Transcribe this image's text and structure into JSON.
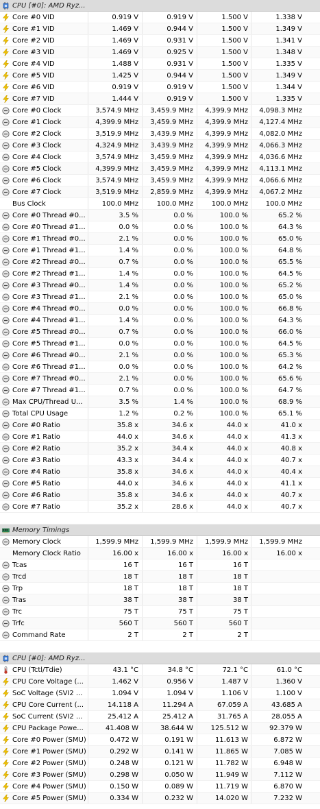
{
  "sections": [
    {
      "header": "CPU [#0]: AMD Ryz...",
      "header_icon": "cpu-chip-icon",
      "rows": [
        {
          "icon": "bolt",
          "label": "Core #0 VID",
          "values": [
            "0.919 V",
            "0.919 V",
            "1.500 V",
            "1.338 V"
          ]
        },
        {
          "icon": "bolt",
          "label": "Core #1 VID",
          "values": [
            "1.469 V",
            "0.944 V",
            "1.500 V",
            "1.349 V"
          ]
        },
        {
          "icon": "bolt",
          "label": "Core #2 VID",
          "values": [
            "1.469 V",
            "0.931 V",
            "1.500 V",
            "1.341 V"
          ]
        },
        {
          "icon": "bolt",
          "label": "Core #3 VID",
          "values": [
            "1.469 V",
            "0.925 V",
            "1.500 V",
            "1.348 V"
          ]
        },
        {
          "icon": "bolt",
          "label": "Core #4 VID",
          "values": [
            "1.488 V",
            "0.931 V",
            "1.500 V",
            "1.335 V"
          ]
        },
        {
          "icon": "bolt",
          "label": "Core #5 VID",
          "values": [
            "1.425 V",
            "0.944 V",
            "1.500 V",
            "1.349 V"
          ]
        },
        {
          "icon": "bolt",
          "label": "Core #6 VID",
          "values": [
            "0.919 V",
            "0.919 V",
            "1.500 V",
            "1.344 V"
          ]
        },
        {
          "icon": "bolt",
          "label": "Core #7 VID",
          "values": [
            "1.444 V",
            "0.919 V",
            "1.500 V",
            "1.335 V"
          ]
        },
        {
          "icon": "gauge",
          "label": "Core #0 Clock",
          "values": [
            "3,574.9 MHz",
            "3,459.9 MHz",
            "4,399.9 MHz",
            "4,098.3 MHz"
          ]
        },
        {
          "icon": "gauge",
          "label": "Core #1 Clock",
          "values": [
            "4,399.9 MHz",
            "3,459.9 MHz",
            "4,399.9 MHz",
            "4,127.4 MHz"
          ]
        },
        {
          "icon": "gauge",
          "label": "Core #2 Clock",
          "values": [
            "3,519.9 MHz",
            "3,439.9 MHz",
            "4,399.9 MHz",
            "4,082.0 MHz"
          ]
        },
        {
          "icon": "gauge",
          "label": "Core #3 Clock",
          "values": [
            "4,324.9 MHz",
            "3,439.9 MHz",
            "4,399.9 MHz",
            "4,066.3 MHz"
          ]
        },
        {
          "icon": "gauge",
          "label": "Core #4 Clock",
          "values": [
            "3,574.9 MHz",
            "3,459.9 MHz",
            "4,399.9 MHz",
            "4,036.6 MHz"
          ]
        },
        {
          "icon": "gauge",
          "label": "Core #5 Clock",
          "values": [
            "4,399.9 MHz",
            "3,459.9 MHz",
            "4,399.9 MHz",
            "4,113.1 MHz"
          ]
        },
        {
          "icon": "gauge",
          "label": "Core #6 Clock",
          "values": [
            "3,574.9 MHz",
            "3,459.9 MHz",
            "4,399.9 MHz",
            "4,066.6 MHz"
          ]
        },
        {
          "icon": "gauge",
          "label": "Core #7 Clock",
          "values": [
            "3,519.9 MHz",
            "2,859.9 MHz",
            "4,399.9 MHz",
            "4,067.2 MHz"
          ]
        },
        {
          "icon": "none",
          "label": "Bus Clock",
          "values": [
            "100.0 MHz",
            "100.0 MHz",
            "100.0 MHz",
            "100.0 MHz"
          ]
        },
        {
          "icon": "gauge",
          "label": "Core #0 Thread #0...",
          "values": [
            "3.5 %",
            "0.0 %",
            "100.0 %",
            "65.2 %"
          ]
        },
        {
          "icon": "gauge",
          "label": "Core #0 Thread #1...",
          "values": [
            "0.0 %",
            "0.0 %",
            "100.0 %",
            "64.3 %"
          ]
        },
        {
          "icon": "gauge",
          "label": "Core #1 Thread #0...",
          "values": [
            "2.1 %",
            "0.0 %",
            "100.0 %",
            "65.0 %"
          ]
        },
        {
          "icon": "gauge",
          "label": "Core #1 Thread #1...",
          "values": [
            "1.4 %",
            "0.0 %",
            "100.0 %",
            "64.8 %"
          ]
        },
        {
          "icon": "gauge",
          "label": "Core #2 Thread #0...",
          "values": [
            "0.7 %",
            "0.0 %",
            "100.0 %",
            "65.5 %"
          ]
        },
        {
          "icon": "gauge",
          "label": "Core #2 Thread #1...",
          "values": [
            "1.4 %",
            "0.0 %",
            "100.0 %",
            "64.5 %"
          ]
        },
        {
          "icon": "gauge",
          "label": "Core #3 Thread #0...",
          "values": [
            "1.4 %",
            "0.0 %",
            "100.0 %",
            "65.2 %"
          ]
        },
        {
          "icon": "gauge",
          "label": "Core #3 Thread #1...",
          "values": [
            "2.1 %",
            "0.0 %",
            "100.0 %",
            "65.0 %"
          ]
        },
        {
          "icon": "gauge",
          "label": "Core #4 Thread #0...",
          "values": [
            "0.0 %",
            "0.0 %",
            "100.0 %",
            "66.8 %"
          ]
        },
        {
          "icon": "gauge",
          "label": "Core #4 Thread #1...",
          "values": [
            "1.4 %",
            "0.0 %",
            "100.0 %",
            "64.3 %"
          ]
        },
        {
          "icon": "gauge",
          "label": "Core #5 Thread #0...",
          "values": [
            "0.7 %",
            "0.0 %",
            "100.0 %",
            "66.0 %"
          ]
        },
        {
          "icon": "gauge",
          "label": "Core #5 Thread #1...",
          "values": [
            "0.0 %",
            "0.0 %",
            "100.0 %",
            "64.5 %"
          ]
        },
        {
          "icon": "gauge",
          "label": "Core #6 Thread #0...",
          "values": [
            "2.1 %",
            "0.0 %",
            "100.0 %",
            "65.3 %"
          ]
        },
        {
          "icon": "gauge",
          "label": "Core #6 Thread #1...",
          "values": [
            "0.0 %",
            "0.0 %",
            "100.0 %",
            "64.2 %"
          ]
        },
        {
          "icon": "gauge",
          "label": "Core #7 Thread #0...",
          "values": [
            "2.1 %",
            "0.0 %",
            "100.0 %",
            "65.6 %"
          ]
        },
        {
          "icon": "gauge",
          "label": "Core #7 Thread #1...",
          "values": [
            "0.7 %",
            "0.0 %",
            "100.0 %",
            "64.7 %"
          ]
        },
        {
          "icon": "gauge",
          "label": "Max CPU/Thread U...",
          "values": [
            "3.5 %",
            "1.4 %",
            "100.0 %",
            "68.9 %"
          ]
        },
        {
          "icon": "gauge",
          "label": "Total CPU Usage",
          "values": [
            "1.2 %",
            "0.2 %",
            "100.0 %",
            "65.1 %"
          ]
        },
        {
          "icon": "gauge",
          "label": "Core #0 Ratio",
          "values": [
            "35.8 x",
            "34.6 x",
            "44.0 x",
            "41.0 x"
          ]
        },
        {
          "icon": "gauge",
          "label": "Core #1 Ratio",
          "values": [
            "44.0 x",
            "34.6 x",
            "44.0 x",
            "41.3 x"
          ]
        },
        {
          "icon": "gauge",
          "label": "Core #2 Ratio",
          "values": [
            "35.2 x",
            "34.4 x",
            "44.0 x",
            "40.8 x"
          ]
        },
        {
          "icon": "gauge",
          "label": "Core #3 Ratio",
          "values": [
            "43.3 x",
            "34.4 x",
            "44.0 x",
            "40.7 x"
          ]
        },
        {
          "icon": "gauge",
          "label": "Core #4 Ratio",
          "values": [
            "35.8 x",
            "34.6 x",
            "44.0 x",
            "40.4 x"
          ]
        },
        {
          "icon": "gauge",
          "label": "Core #5 Ratio",
          "values": [
            "44.0 x",
            "34.6 x",
            "44.0 x",
            "41.1 x"
          ]
        },
        {
          "icon": "gauge",
          "label": "Core #6 Ratio",
          "values": [
            "35.8 x",
            "34.6 x",
            "44.0 x",
            "40.7 x"
          ]
        },
        {
          "icon": "gauge",
          "label": "Core #7 Ratio",
          "values": [
            "35.2 x",
            "28.6 x",
            "44.0 x",
            "40.7 x"
          ]
        }
      ]
    },
    {
      "header": "Memory Timings",
      "header_icon": "memory-module-icon",
      "rows": [
        {
          "icon": "gauge",
          "label": "Memory Clock",
          "values": [
            "1,599.9 MHz",
            "1,599.9 MHz",
            "1,599.9 MHz",
            "1,599.9 MHz"
          ]
        },
        {
          "icon": "none",
          "label": "Memory Clock Ratio",
          "values": [
            "16.00 x",
            "16.00 x",
            "16.00 x",
            "16.00 x"
          ]
        },
        {
          "icon": "gauge",
          "label": "Tcas",
          "values": [
            "16 T",
            "16 T",
            "16 T",
            ""
          ]
        },
        {
          "icon": "gauge",
          "label": "Trcd",
          "values": [
            "18 T",
            "18 T",
            "18 T",
            ""
          ]
        },
        {
          "icon": "gauge",
          "label": "Trp",
          "values": [
            "18 T",
            "18 T",
            "18 T",
            ""
          ]
        },
        {
          "icon": "gauge",
          "label": "Tras",
          "values": [
            "38 T",
            "38 T",
            "38 T",
            ""
          ]
        },
        {
          "icon": "gauge",
          "label": "Trc",
          "values": [
            "75 T",
            "75 T",
            "75 T",
            ""
          ]
        },
        {
          "icon": "gauge",
          "label": "Trfc",
          "values": [
            "560 T",
            "560 T",
            "560 T",
            ""
          ]
        },
        {
          "icon": "gauge",
          "label": "Command Rate",
          "values": [
            "2 T",
            "2 T",
            "2 T",
            ""
          ]
        }
      ]
    },
    {
      "header": "CPU [#0]: AMD Ryz...",
      "header_icon": "cpu-chip-icon",
      "rows": [
        {
          "icon": "thermo",
          "label": "CPU (Tctl/Tdie)",
          "values": [
            "43.1 °C",
            "34.8 °C",
            "72.1 °C",
            "61.0 °C"
          ]
        },
        {
          "icon": "bolt",
          "label": "CPU Core Voltage (...",
          "values": [
            "1.462 V",
            "0.956 V",
            "1.487 V",
            "1.360 V"
          ]
        },
        {
          "icon": "bolt",
          "label": "SoC Voltage (SVI2 ...",
          "values": [
            "1.094 V",
            "1.094 V",
            "1.106 V",
            "1.100 V"
          ]
        },
        {
          "icon": "bolt",
          "label": "CPU Core Current (...",
          "values": [
            "14.118 A",
            "11.294 A",
            "67.059 A",
            "43.685 A"
          ]
        },
        {
          "icon": "bolt",
          "label": "SoC Current (SVI2 ...",
          "values": [
            "25.412 A",
            "25.412 A",
            "31.765 A",
            "28.055 A"
          ]
        },
        {
          "icon": "bolt",
          "label": "CPU Package Powe...",
          "values": [
            "41.408 W",
            "38.644 W",
            "125.512 W",
            "92.379 W"
          ]
        },
        {
          "icon": "bolt",
          "label": "Core #0 Power (SMU)",
          "values": [
            "0.472 W",
            "0.191 W",
            "11.613 W",
            "6.872 W"
          ]
        },
        {
          "icon": "bolt",
          "label": "Core #1 Power (SMU)",
          "values": [
            "0.292 W",
            "0.141 W",
            "11.865 W",
            "7.085 W"
          ]
        },
        {
          "icon": "bolt",
          "label": "Core #2 Power (SMU)",
          "values": [
            "0.248 W",
            "0.121 W",
            "11.782 W",
            "6.948 W"
          ]
        },
        {
          "icon": "bolt",
          "label": "Core #3 Power (SMU)",
          "values": [
            "0.298 W",
            "0.050 W",
            "11.949 W",
            "7.112 W"
          ]
        },
        {
          "icon": "bolt",
          "label": "Core #4 Power (SMU)",
          "values": [
            "0.150 W",
            "0.089 W",
            "11.719 W",
            "6.870 W"
          ]
        },
        {
          "icon": "bolt",
          "label": "Core #5 Power (SMU)",
          "values": [
            "0.334 W",
            "0.232 W",
            "14.020 W",
            "7.232 W"
          ]
        }
      ]
    }
  ],
  "colors": {
    "bolt": "#f2c200",
    "gauge_ring": "#6a6a6a",
    "thermo": "#c0392b",
    "header_bg": "#dcdcdc"
  }
}
